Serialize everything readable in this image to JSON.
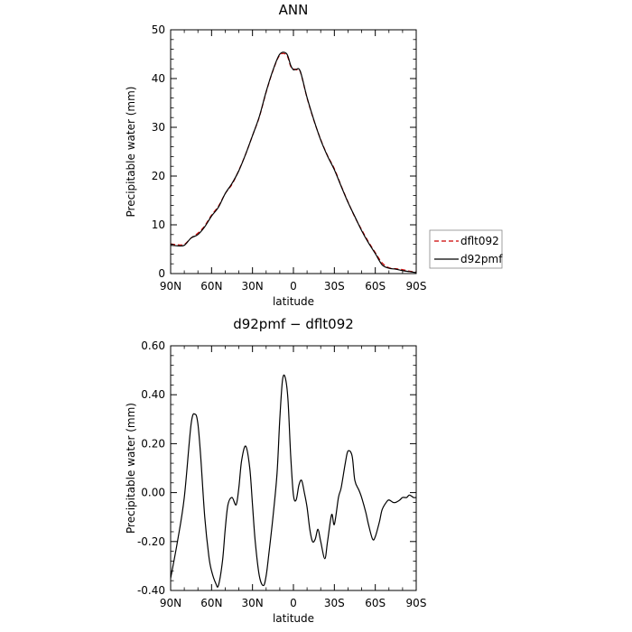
{
  "chart_data": [
    {
      "type": "line",
      "title": "ANN",
      "xlabel": "latitude",
      "ylabel": "Precipitable water (mm)",
      "x_tick_labels": [
        "90N",
        "60N",
        "30N",
        "0",
        "30S",
        "60S",
        "90S"
      ],
      "x_ticks": [
        -90,
        -60,
        -30,
        0,
        30,
        60,
        90
      ],
      "xlim": [
        -90,
        90
      ],
      "ylim": [
        0,
        50
      ],
      "y_ticks": [
        0,
        10,
        20,
        30,
        40,
        50
      ],
      "y_tick_labels": [
        "0",
        "10",
        "20",
        "30",
        "40",
        "50"
      ],
      "legend_position": "right",
      "series": [
        {
          "name": "dflt092",
          "color": "#cc0000",
          "style": "dashed",
          "x": [
            -90,
            -85,
            -80,
            -75,
            -70,
            -65,
            -60,
            -55,
            -50,
            -45,
            -40,
            -35,
            -30,
            -25,
            -20,
            -15,
            -10,
            -5,
            -2,
            0,
            2,
            5,
            10,
            15,
            20,
            25,
            30,
            35,
            40,
            45,
            50,
            55,
            60,
            65,
            70,
            75,
            80,
            85,
            90
          ],
          "values": [
            6.1,
            5.9,
            6.0,
            7.3,
            8.3,
            9.8,
            12.0,
            13.8,
            16.4,
            18.3,
            21.2,
            24.5,
            28.3,
            32.1,
            37.2,
            41.6,
            44.8,
            44.8,
            42.5,
            42.0,
            41.8,
            41.4,
            36.0,
            31.4,
            27.5,
            24.2,
            21.5,
            18.0,
            14.7,
            11.6,
            9.0,
            6.5,
            4.3,
            2.2,
            1.2,
            1.0,
            0.8,
            0.5,
            0.3
          ]
        },
        {
          "name": "d92pmf",
          "color": "#000000",
          "style": "solid",
          "x": [
            -90,
            -85,
            -80,
            -75,
            -70,
            -65,
            -60,
            -55,
            -50,
            -45,
            -40,
            -35,
            -30,
            -25,
            -20,
            -15,
            -10,
            -5,
            -2,
            0,
            2,
            5,
            10,
            15,
            20,
            25,
            30,
            35,
            40,
            45,
            50,
            55,
            60,
            65,
            70,
            75,
            80,
            85,
            90
          ],
          "values": [
            5.8,
            5.7,
            5.8,
            7.3,
            8.0,
            9.6,
            11.8,
            13.6,
            16.4,
            18.5,
            21.1,
            24.5,
            28.3,
            32.2,
            37.3,
            41.7,
            45.0,
            45.1,
            42.7,
            41.8,
            41.9,
            41.5,
            36.1,
            31.5,
            27.4,
            24.1,
            21.3,
            17.9,
            14.6,
            11.7,
            8.8,
            6.3,
            4.1,
            1.8,
            1.1,
            0.9,
            0.6,
            0.4,
            0.2
          ]
        }
      ]
    },
    {
      "type": "line",
      "title": "d92pmf − dflt092",
      "xlabel": "latitude",
      "ylabel": "Precipitable water (mm)",
      "x_tick_labels": [
        "90N",
        "60N",
        "30N",
        "0",
        "30S",
        "60S",
        "90S"
      ],
      "x_ticks": [
        -90,
        -60,
        -30,
        0,
        30,
        60,
        90
      ],
      "xlim": [
        -90,
        90
      ],
      "ylim": [
        -0.4,
        0.6
      ],
      "y_ticks": [
        -0.4,
        -0.2,
        0.0,
        0.2,
        0.4,
        0.6
      ],
      "y_tick_labels": [
        "-0.40",
        "-0.20",
        "0.00",
        "0.20",
        "0.40",
        "0.60"
      ],
      "series": [
        {
          "color": "#000000",
          "style": "solid",
          "x": [
            -90,
            -85,
            -80,
            -75,
            -72,
            -70,
            -68,
            -65,
            -62,
            -60,
            -57,
            -55,
            -52,
            -50,
            -48,
            -45,
            -42,
            -40,
            -38,
            -35,
            -32,
            -30,
            -28,
            -25,
            -22,
            -20,
            -18,
            -15,
            -12,
            -10,
            -8,
            -6,
            -4,
            -2,
            0,
            2,
            4,
            6,
            8,
            10,
            12,
            14,
            16,
            18,
            20,
            23,
            25,
            28,
            30,
            33,
            35,
            38,
            40,
            43,
            45,
            48,
            50,
            53,
            55,
            58,
            60,
            63,
            65,
            68,
            70,
            73,
            75,
            78,
            80,
            83,
            85,
            88,
            90
          ],
          "values": [
            -0.35,
            -0.2,
            -0.02,
            0.28,
            0.32,
            0.28,
            0.15,
            -0.1,
            -0.26,
            -0.32,
            -0.37,
            -0.38,
            -0.28,
            -0.15,
            -0.05,
            -0.02,
            -0.05,
            0.02,
            0.13,
            0.19,
            0.1,
            -0.05,
            -0.2,
            -0.34,
            -0.38,
            -0.34,
            -0.25,
            -0.1,
            0.08,
            0.3,
            0.46,
            0.47,
            0.38,
            0.15,
            -0.01,
            -0.03,
            0.03,
            0.05,
            0.0,
            -0.06,
            -0.15,
            -0.2,
            -0.19,
            -0.15,
            -0.2,
            -0.27,
            -0.2,
            -0.09,
            -0.13,
            -0.02,
            0.02,
            0.12,
            0.17,
            0.15,
            0.05,
            0.01,
            -0.02,
            -0.08,
            -0.13,
            -0.19,
            -0.18,
            -0.12,
            -0.07,
            -0.04,
            -0.03,
            -0.04,
            -0.04,
            -0.03,
            -0.02,
            -0.02,
            -0.01,
            -0.02,
            -0.02
          ]
        }
      ]
    }
  ]
}
